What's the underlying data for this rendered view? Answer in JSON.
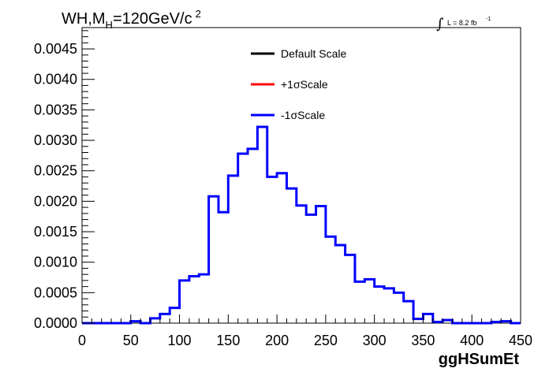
{
  "chart_data": {
    "type": "histogram",
    "title": {
      "main": "WH,M",
      "sub": "H",
      "rest": "=120GeV/c",
      "sup": "2"
    },
    "luminosity": {
      "text": "L = 8.2 fb",
      "sup": "-1"
    },
    "xlabel": "ggHSumEt",
    "ylabel": "",
    "xlim": [
      0,
      450
    ],
    "ylim": [
      0,
      0.00485
    ],
    "x_ticks": [
      0,
      50,
      100,
      150,
      200,
      250,
      300,
      350,
      400,
      450
    ],
    "x_tick_labels": [
      "0",
      "50",
      "100",
      "150",
      "200",
      "250",
      "300",
      "350",
      "400",
      "450"
    ],
    "y_ticks": [
      0,
      0.0005,
      0.001,
      0.0015,
      0.002,
      0.0025,
      0.003,
      0.0035,
      0.004,
      0.0045
    ],
    "y_tick_labels": [
      "0.0000",
      "0.0005",
      "0.0010",
      "0.0015",
      "0.0020",
      "0.0025",
      "0.0030",
      "0.0035",
      "0.0040",
      "0.0045"
    ],
    "bin_width": 10,
    "bin_edges": [
      0,
      450
    ],
    "legend": [
      {
        "label": "Default Scale",
        "color": "#000000"
      },
      {
        "label": "+1σScale",
        "color": "#ff0000"
      },
      {
        "label": "-1σScale",
        "color": "#0000ff"
      }
    ],
    "series": [
      {
        "name": "-1σScale",
        "color": "#0000ff",
        "values": [
          0,
          0,
          0,
          0,
          0,
          3e-05,
          0,
          8e-05,
          0.00015,
          0.00025,
          0.0007,
          0.00077,
          0.0008,
          0.00208,
          0.00182,
          0.00242,
          0.00278,
          0.00286,
          0.00322,
          0.0024,
          0.00246,
          0.00221,
          0.00193,
          0.00178,
          0.00192,
          0.00142,
          0.00128,
          0.00112,
          0.00068,
          0.00072,
          0.0006,
          0.00057,
          0.0005,
          0.00036,
          7e-05,
          0.00015,
          2e-05,
          5e-05,
          0.0,
          0.0,
          0.0,
          0.0,
          2e-05,
          3e-05,
          0.0
        ]
      }
    ],
    "grid": false,
    "legend_position": "top-center"
  }
}
